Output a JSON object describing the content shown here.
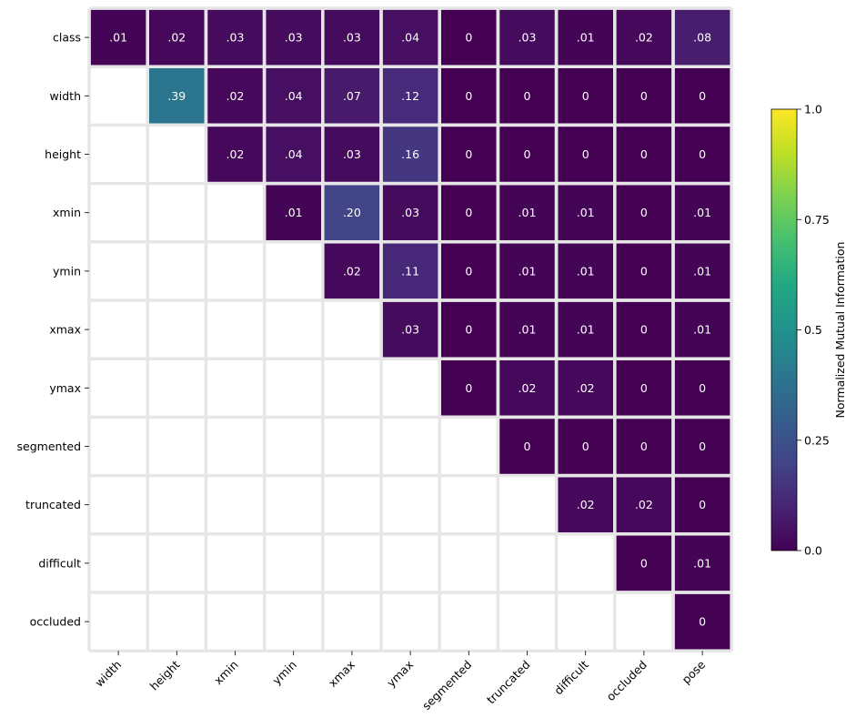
{
  "chart_data": {
    "type": "heatmap",
    "rows": [
      "class",
      "width",
      "height",
      "xmin",
      "ymin",
      "xmax",
      "ymax",
      "segmented",
      "truncated",
      "difficult",
      "occluded"
    ],
    "columns": [
      "width",
      "height",
      "xmin",
      "ymin",
      "xmax",
      "ymax",
      "segmented",
      "truncated",
      "difficult",
      "occluded",
      "pose"
    ],
    "labels": [
      [
        ".01",
        ".02",
        ".03",
        ".03",
        ".03",
        ".04",
        "0",
        ".03",
        ".01",
        ".02",
        ".08"
      ],
      [
        null,
        ".39",
        ".02",
        ".04",
        ".07",
        ".12",
        "0",
        "0",
        "0",
        "0",
        "0"
      ],
      [
        null,
        null,
        ".02",
        ".04",
        ".03",
        ".16",
        "0",
        "0",
        "0",
        "0",
        "0"
      ],
      [
        null,
        null,
        null,
        ".01",
        ".20",
        ".03",
        "0",
        ".01",
        ".01",
        "0",
        ".01"
      ],
      [
        null,
        null,
        null,
        null,
        ".02",
        ".11",
        "0",
        ".01",
        ".01",
        "0",
        ".01"
      ],
      [
        null,
        null,
        null,
        null,
        null,
        ".03",
        "0",
        ".01",
        ".01",
        "0",
        ".01"
      ],
      [
        null,
        null,
        null,
        null,
        null,
        null,
        "0",
        ".02",
        ".02",
        "0",
        "0"
      ],
      [
        null,
        null,
        null,
        null,
        null,
        null,
        null,
        "0",
        "0",
        "0",
        "0"
      ],
      [
        null,
        null,
        null,
        null,
        null,
        null,
        null,
        null,
        ".02",
        ".02",
        "0"
      ],
      [
        null,
        null,
        null,
        null,
        null,
        null,
        null,
        null,
        null,
        "0",
        ".01"
      ],
      [
        null,
        null,
        null,
        null,
        null,
        null,
        null,
        null,
        null,
        null,
        "0"
      ]
    ],
    "values": [
      [
        0.01,
        0.02,
        0.03,
        0.03,
        0.03,
        0.04,
        0,
        0.03,
        0.01,
        0.02,
        0.08
      ],
      [
        null,
        0.39,
        0.02,
        0.04,
        0.07,
        0.12,
        0,
        0,
        0,
        0,
        0
      ],
      [
        null,
        null,
        0.02,
        0.04,
        0.03,
        0.16,
        0,
        0,
        0,
        0,
        0
      ],
      [
        null,
        null,
        null,
        0.01,
        0.2,
        0.03,
        0,
        0.01,
        0.01,
        0,
        0.01
      ],
      [
        null,
        null,
        null,
        null,
        0.02,
        0.11,
        0,
        0.01,
        0.01,
        0,
        0.01
      ],
      [
        null,
        null,
        null,
        null,
        null,
        0.03,
        0,
        0.01,
        0.01,
        0,
        0.01
      ],
      [
        null,
        null,
        null,
        null,
        null,
        null,
        0,
        0.02,
        0.02,
        0,
        0
      ],
      [
        null,
        null,
        null,
        null,
        null,
        null,
        null,
        0,
        0,
        0,
        0
      ],
      [
        null,
        null,
        null,
        null,
        null,
        null,
        null,
        null,
        0.02,
        0.02,
        0
      ],
      [
        null,
        null,
        null,
        null,
        null,
        null,
        null,
        null,
        null,
        0,
        0.01
      ],
      [
        null,
        null,
        null,
        null,
        null,
        null,
        null,
        null,
        null,
        null,
        0
      ]
    ],
    "colorbar": {
      "label": "Normalized Mutual Information",
      "range": [
        0,
        1
      ],
      "ticks": [
        0,
        0.25,
        0.5,
        0.75,
        1
      ],
      "tick_labels": [
        "0.0",
        "0.25",
        "0.5",
        "0.75",
        "1.0"
      ],
      "colormap": "viridis"
    },
    "colors": {
      "missing_cell": "#ffffff",
      "cell_border": "#e6e6e6",
      "cell_text": "#ffffff"
    }
  }
}
